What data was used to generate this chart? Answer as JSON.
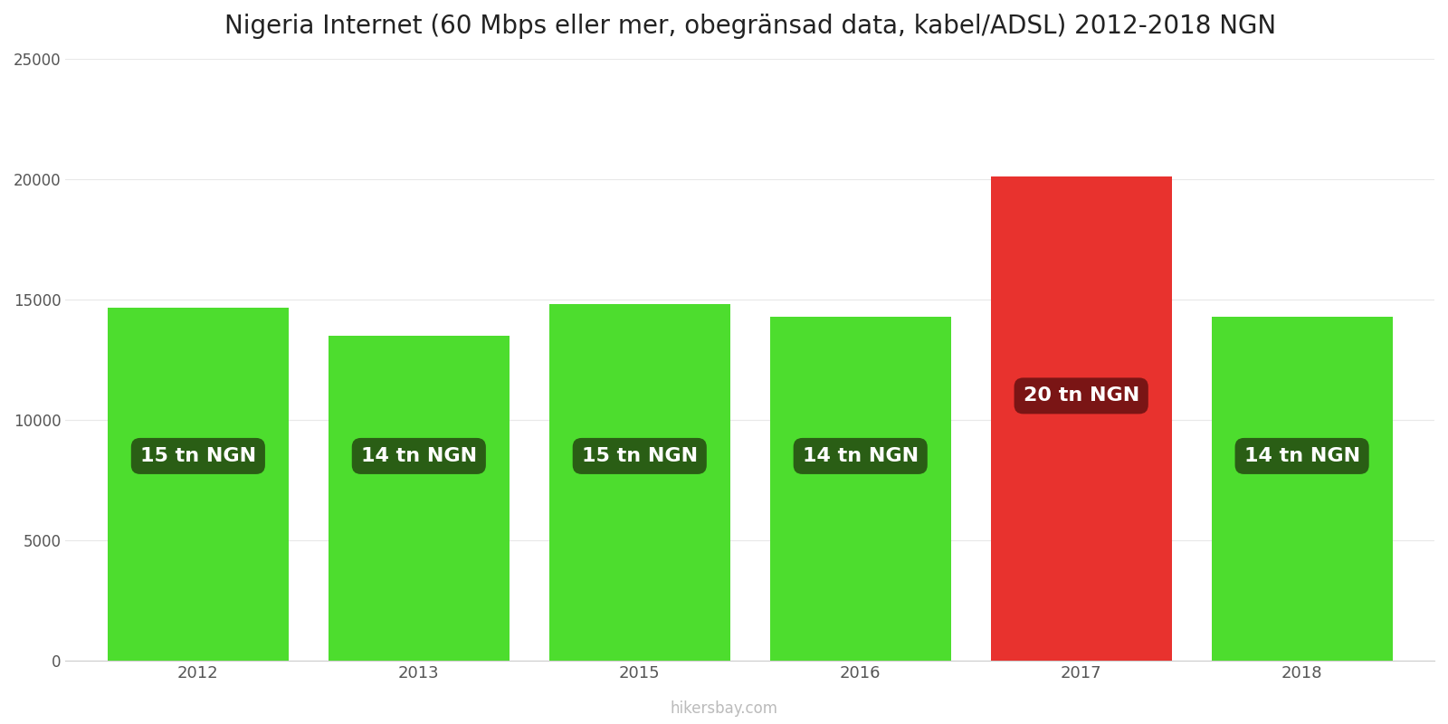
{
  "title": "Nigeria Internet (60 Mbps eller mer, obegränsad data, kabel/ADSL) 2012-2018 NGN",
  "years": [
    2012,
    2013,
    2015,
    2016,
    2017,
    2018
  ],
  "values": [
    14650,
    13500,
    14800,
    14300,
    20100,
    14300
  ],
  "bar_colors": [
    "#4ddd2e",
    "#4ddd2e",
    "#4ddd2e",
    "#4ddd2e",
    "#e8322e",
    "#4ddd2e"
  ],
  "labels": [
    "15 tn NGN",
    "14 tn NGN",
    "15 tn NGN",
    "14 tn NGN",
    "20 tn NGN",
    "14 tn NGN"
  ],
  "label_bg_colors": [
    "#2a5e15",
    "#2a5e15",
    "#2a5e15",
    "#2a5e15",
    "#7a1515",
    "#2a5e15"
  ],
  "label_y_positions": [
    8500,
    8500,
    8500,
    8500,
    11000,
    8500
  ],
  "ylim": [
    0,
    25000
  ],
  "yticks": [
    0,
    5000,
    10000,
    15000,
    20000,
    25000
  ],
  "title_fontsize": 20,
  "bar_width": 0.82,
  "watermark": "hikersbay.com",
  "background_color": "#ffffff",
  "grid_color": "#e8e8e8"
}
